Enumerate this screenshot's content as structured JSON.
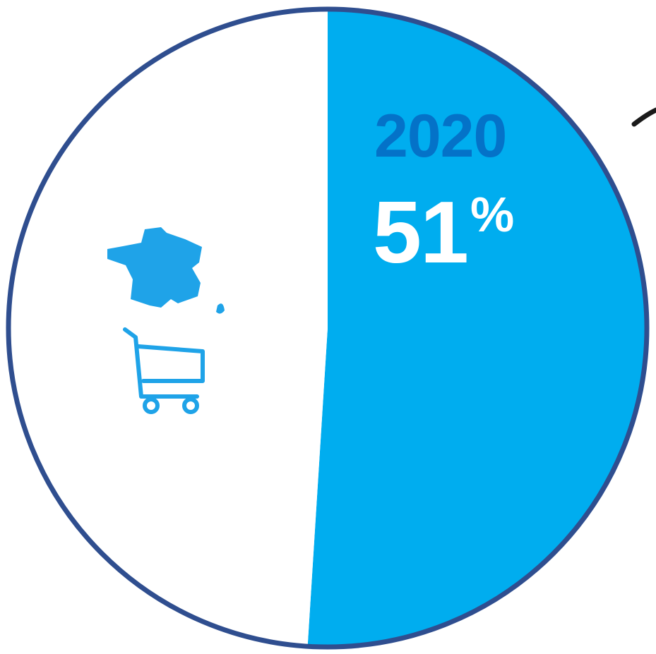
{
  "chart_data": {
    "type": "pie",
    "slices": [
      {
        "value": 51,
        "color": "#00adef"
      },
      {
        "value": 49,
        "color": "#ffffff"
      }
    ],
    "annotations": {
      "year": "2020",
      "value": "51",
      "unit": "%"
    }
  },
  "colors": {
    "border": "#2f4e8f",
    "highlight": "#00adef",
    "year_text": "#0472c8",
    "icon": "#1fa3e8",
    "background": "#ffffff"
  },
  "icons": [
    "france-map-icon",
    "shopping-cart-icon"
  ]
}
